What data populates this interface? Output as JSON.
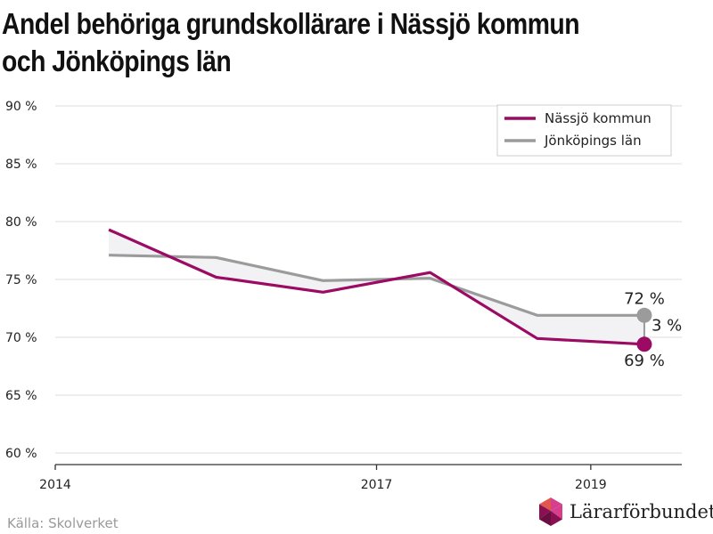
{
  "title": "Andel behöriga grundskollärare i Nässjö kommun och Jönköpings län",
  "source": "Källa: Skolverket",
  "logo": {
    "name": "lararforbundet-logo",
    "text": "Lärarförbundet",
    "colors": [
      "#d63f8c",
      "#8a1052",
      "#e2574c",
      "#6a0d40"
    ]
  },
  "colors": {
    "nassjo": "#9b0a63",
    "jonkoping": "#9b9b9b",
    "grid": "#dddddd",
    "band": "#f2f2f4"
  },
  "chart_data": {
    "type": "line",
    "x_axis": {
      "min": 2014,
      "max": 2019.85,
      "ticks": [
        2014,
        2017,
        2019
      ],
      "tick_labels": [
        "2014",
        "2017",
        "2019"
      ]
    },
    "y_axis": {
      "min": 59,
      "max": 91,
      "ticks": [
        60,
        65,
        70,
        75,
        80,
        85,
        90
      ],
      "tick_labels": [
        "60 %",
        "65 %",
        "70 %",
        "75 %",
        "80 %",
        "85 %",
        "90 %"
      ]
    },
    "grid": true,
    "legend_position": "top-right",
    "series": [
      {
        "name": "Nässjö kommun",
        "color": "#9b0a63",
        "x": [
          2014.5,
          2015.5,
          2016.5,
          2017.5,
          2018.5,
          2019.5
        ],
        "y": [
          79.3,
          75.2,
          73.9,
          75.6,
          69.9,
          69.4
        ]
      },
      {
        "name": "Jönköpings län",
        "color": "#9b9b9b",
        "x": [
          2014.5,
          2015.5,
          2016.5,
          2017.5,
          2018.5,
          2019.5
        ],
        "y": [
          77.1,
          76.9,
          74.9,
          75.1,
          71.9,
          71.9
        ]
      }
    ],
    "annotations": {
      "jonkoping_last": "72 %",
      "nassjo_last": "69 %",
      "difference": "3 %"
    }
  }
}
